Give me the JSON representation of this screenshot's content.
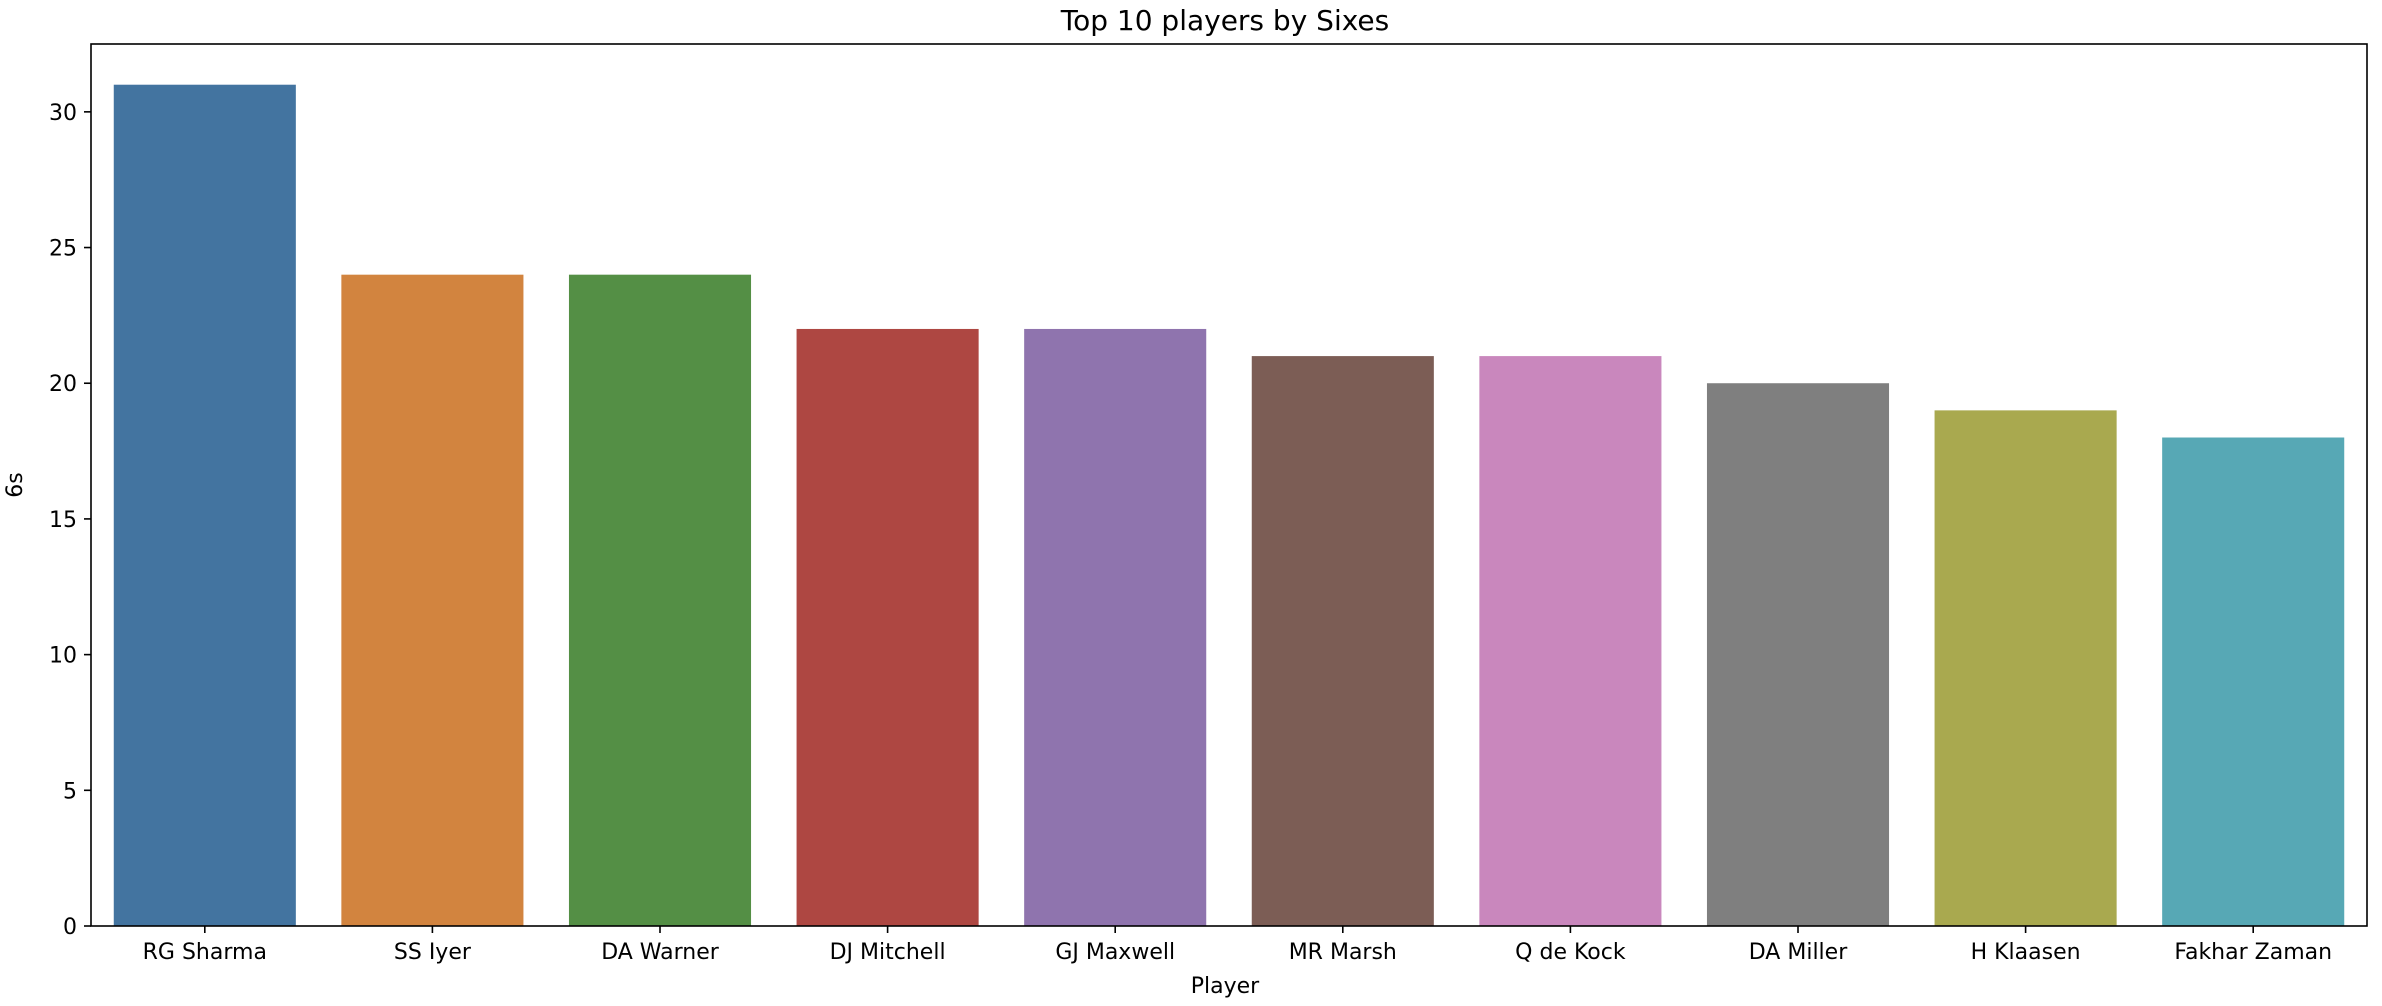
{
  "chart_data": {
    "type": "bar",
    "title": "Top 10 players by Sixes",
    "xlabel": "Player",
    "ylabel": "6s",
    "categories": [
      "RG Sharma",
      "SS Iyer",
      "DA Warner",
      "DJ Mitchell",
      "GJ Maxwell",
      "MR Marsh",
      "Q de Kock",
      "DA Miller",
      "H Klaasen",
      "Fakhar Zaman"
    ],
    "values": [
      31,
      24,
      24,
      22,
      22,
      21,
      21,
      20,
      19,
      18
    ],
    "colors": [
      "#4374a0",
      "#d2843f",
      "#548f45",
      "#ae4742",
      "#8f74ae",
      "#7c5d55",
      "#c987bd",
      "#7f7f7f",
      "#a9a94f",
      "#57a8b5"
    ],
    "yticks": [
      "0",
      "5",
      "10",
      "15",
      "20",
      "25",
      "30"
    ],
    "ylim": [
      0,
      32.5
    ],
    "grid": false,
    "legend": "none"
  }
}
